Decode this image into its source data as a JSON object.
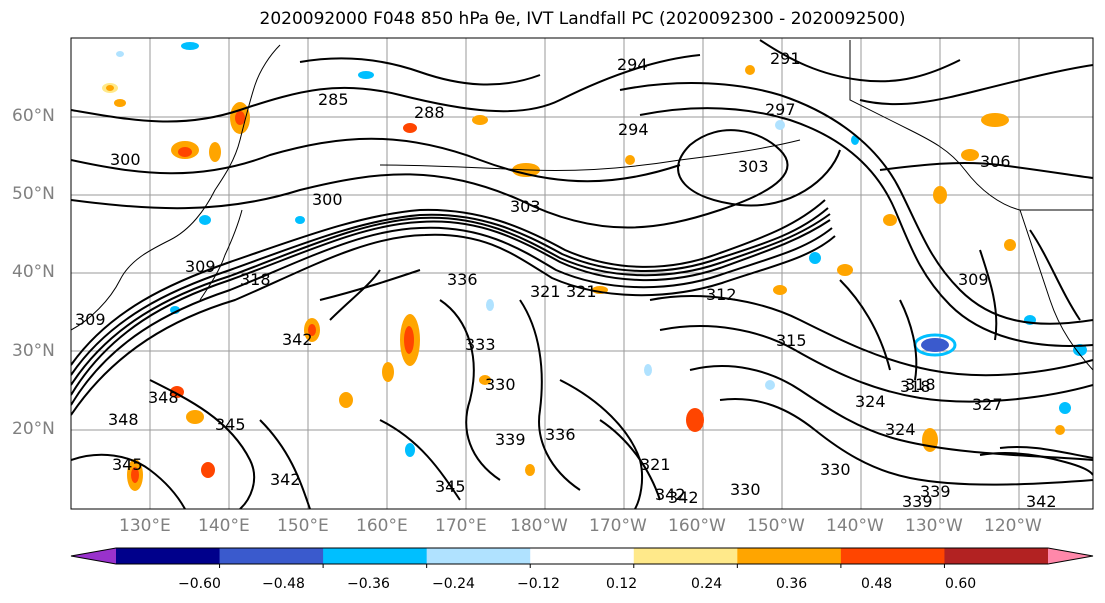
{
  "title": "2020092000 F048 850 hPa θe, IVT Landfall PC (2020092300 - 2020092500)",
  "latitude_labels": [
    "60°N",
    "50°N",
    "40°N",
    "30°N",
    "20°N"
  ],
  "longitude_labels": [
    "130°E",
    "140°E",
    "150°E",
    "160°E",
    "170°E",
    "180°W",
    "170°W",
    "160°W",
    "150°W",
    "140°W",
    "130°W",
    "120°W"
  ],
  "contour_labels": [
    "291",
    "294",
    "294",
    "285",
    "288",
    "297",
    "300",
    "300",
    "303",
    "303",
    "306",
    "309",
    "309",
    "309",
    "318",
    "336",
    "321",
    "321",
    "312",
    "318",
    "315",
    "342",
    "333",
    "330",
    "339",
    "336",
    "348",
    "348",
    "345",
    "345",
    "345",
    "342",
    "342",
    "339",
    "318",
    "327",
    "324",
    "324",
    "321",
    "330",
    "330",
    "342",
    "339",
    "342"
  ],
  "colorbar": {
    "colors": [
      "#9932cc",
      "#00008b",
      "#3a5acd",
      "#00bfff",
      "#b0e2ff",
      "#ffffff",
      "#ffe98a",
      "#ffa500",
      "#ff4500",
      "#b22222",
      "#ff88aa"
    ],
    "tick_labels": [
      "−0.60",
      "−0.48",
      "−0.36",
      "−0.24",
      "−0.12",
      "0.12",
      "0.24",
      "0.36",
      "0.48",
      "0.60"
    ]
  }
}
